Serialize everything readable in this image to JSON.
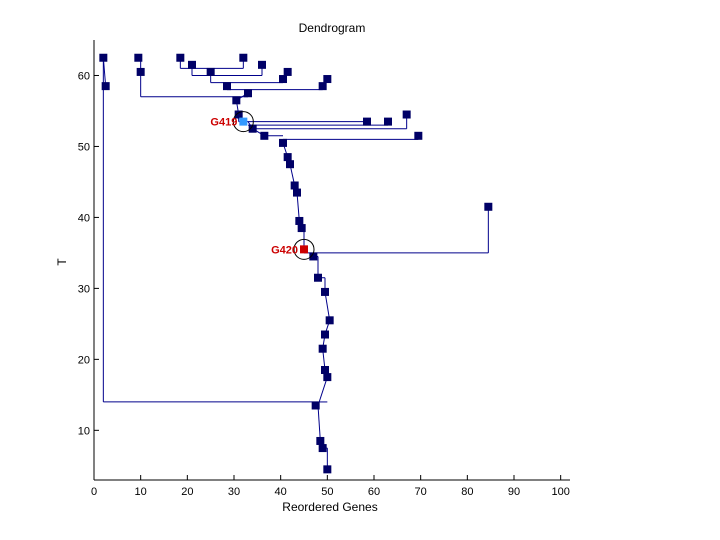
{
  "chart_data": {
    "type": "scatter",
    "title": "Dendrogram",
    "xlabel": "Reordered Genes",
    "ylabel": "T",
    "xlim": [
      0,
      102
    ],
    "ylim": [
      3,
      65
    ],
    "xticks": [
      0,
      10,
      20,
      30,
      40,
      50,
      60,
      70,
      80,
      90,
      100
    ],
    "yticks": [
      10,
      20,
      30,
      40,
      50,
      60
    ],
    "grid": false,
    "colors": {
      "marker": "#000066",
      "line": "#00008b",
      "highlight_blue": "#3399ff",
      "highlight_red": "#cc0000",
      "annotation": "#cc0000"
    },
    "points": [
      {
        "x": 2,
        "y": 62.5
      },
      {
        "x": 9.5,
        "y": 62.5
      },
      {
        "x": 18.5,
        "y": 62.5
      },
      {
        "x": 32,
        "y": 62.5
      },
      {
        "x": 21,
        "y": 61.5
      },
      {
        "x": 36,
        "y": 61.5
      },
      {
        "x": 10,
        "y": 60.5
      },
      {
        "x": 25,
        "y": 60.5
      },
      {
        "x": 41.5,
        "y": 60.5
      },
      {
        "x": 40.5,
        "y": 59.5
      },
      {
        "x": 50,
        "y": 59.5
      },
      {
        "x": 2.5,
        "y": 58.5
      },
      {
        "x": 28.5,
        "y": 58.5
      },
      {
        "x": 49,
        "y": 58.5
      },
      {
        "x": 33,
        "y": 57.5
      },
      {
        "x": 30.5,
        "y": 56.5
      },
      {
        "x": 67,
        "y": 54.5
      },
      {
        "x": 31,
        "y": 54.5
      },
      {
        "x": 58.5,
        "y": 53.5
      },
      {
        "x": 63,
        "y": 53.5
      },
      {
        "x": 34,
        "y": 52.5
      },
      {
        "x": 36.5,
        "y": 51.5
      },
      {
        "x": 69.5,
        "y": 51.5
      },
      {
        "x": 40.5,
        "y": 50.5
      },
      {
        "x": 41.5,
        "y": 48.5
      },
      {
        "x": 42,
        "y": 47.5
      },
      {
        "x": 43,
        "y": 44.5
      },
      {
        "x": 43.5,
        "y": 43.5
      },
      {
        "x": 84.5,
        "y": 41.5
      },
      {
        "x": 44,
        "y": 39.5
      },
      {
        "x": 44.5,
        "y": 38.5
      },
      {
        "x": 47,
        "y": 34.5
      },
      {
        "x": 48,
        "y": 31.5
      },
      {
        "x": 49.5,
        "y": 29.5
      },
      {
        "x": 50.5,
        "y": 25.5
      },
      {
        "x": 49.5,
        "y": 23.5
      },
      {
        "x": 49,
        "y": 21.5
      },
      {
        "x": 49.5,
        "y": 18.5
      },
      {
        "x": 50,
        "y": 17.5
      },
      {
        "x": 47.5,
        "y": 13.5
      },
      {
        "x": 48.5,
        "y": 8.5
      },
      {
        "x": 49,
        "y": 7.5
      },
      {
        "x": 50,
        "y": 4.5
      }
    ],
    "highlights": [
      {
        "label": "G419",
        "x": 32,
        "y": 53.5,
        "color": "blue"
      },
      {
        "label": "G420",
        "x": 45,
        "y": 35.5,
        "color": "red"
      }
    ],
    "segments": [
      [
        [
          50,
          4.5
        ],
        [
          50,
          7.5
        ]
      ],
      [
        [
          49,
          7.5
        ],
        [
          50,
          7.5
        ]
      ],
      [
        [
          49,
          7.5
        ],
        [
          49,
          8.5
        ]
      ],
      [
        [
          48.5,
          8.5
        ],
        [
          49,
          8.5
        ]
      ],
      [
        [
          48.5,
          8.5
        ],
        [
          48,
          13.5
        ]
      ],
      [
        [
          47.5,
          13.5
        ],
        [
          48,
          13.5
        ]
      ],
      [
        [
          48,
          14
        ],
        [
          50,
          14
        ]
      ],
      [
        [
          2,
          14
        ],
        [
          48,
          14
        ]
      ],
      [
        [
          2,
          14
        ],
        [
          2,
          62.5
        ]
      ],
      [
        [
          48,
          13.5
        ],
        [
          50,
          17.5
        ]
      ],
      [
        [
          50,
          17.5
        ],
        [
          49.5,
          18.5
        ]
      ],
      [
        [
          49.5,
          18.5
        ],
        [
          49,
          21.5
        ]
      ],
      [
        [
          49,
          21.5
        ],
        [
          49.5,
          23.5
        ]
      ],
      [
        [
          49.5,
          23.5
        ],
        [
          50.5,
          25.5
        ]
      ],
      [
        [
          50.5,
          25.5
        ],
        [
          49.5,
          29.5
        ]
      ],
      [
        [
          48,
          31.5
        ],
        [
          49.5,
          31.5
        ]
      ],
      [
        [
          49.5,
          29.5
        ],
        [
          49.5,
          31.5
        ]
      ],
      [
        [
          48,
          31.5
        ],
        [
          48,
          34.5
        ]
      ],
      [
        [
          47,
          34.5
        ],
        [
          48,
          34.5
        ]
      ],
      [
        [
          47,
          34.5
        ],
        [
          47,
          35
        ]
      ],
      [
        [
          45,
          35
        ],
        [
          84.5,
          35
        ]
      ],
      [
        [
          84.5,
          35
        ],
        [
          84.5,
          41.5
        ]
      ],
      [
        [
          45,
          35
        ],
        [
          45,
          38.5
        ]
      ],
      [
        [
          44.5,
          38.5
        ],
        [
          45,
          38.5
        ]
      ],
      [
        [
          44.5,
          38.5
        ],
        [
          44,
          39.5
        ]
      ],
      [
        [
          44,
          39.5
        ],
        [
          43.5,
          43.5
        ]
      ],
      [
        [
          43.5,
          43.5
        ],
        [
          43,
          44.5
        ]
      ],
      [
        [
          43,
          44.5
        ],
        [
          42,
          47.5
        ]
      ],
      [
        [
          42,
          47.5
        ],
        [
          41.5,
          48.5
        ]
      ],
      [
        [
          41.5,
          48.5
        ],
        [
          40.5,
          50.5
        ]
      ],
      [
        [
          40.5,
          51
        ],
        [
          69.5,
          51
        ]
      ],
      [
        [
          69.5,
          51
        ],
        [
          69.5,
          51.5
        ]
      ],
      [
        [
          40.5,
          50.5
        ],
        [
          40.5,
          51
        ]
      ],
      [
        [
          36.5,
          51.5
        ],
        [
          40.5,
          51.5
        ]
      ],
      [
        [
          36.5,
          51.5
        ],
        [
          34,
          52.5
        ]
      ],
      [
        [
          34,
          52.5
        ],
        [
          67,
          52.5
        ]
      ],
      [
        [
          67,
          52.5
        ],
        [
          67,
          54.5
        ]
      ],
      [
        [
          34,
          52.5
        ],
        [
          33,
          53.5
        ]
      ],
      [
        [
          33,
          53
        ],
        [
          63,
          53
        ]
      ],
      [
        [
          63,
          53
        ],
        [
          63,
          53.5
        ]
      ],
      [
        [
          31,
          53.5
        ],
        [
          58.5,
          53.5
        ]
      ],
      [
        [
          31,
          53.5
        ],
        [
          31,
          54.5
        ]
      ],
      [
        [
          31,
          54.5
        ],
        [
          30.5,
          56.5
        ]
      ],
      [
        [
          30.5,
          56.5
        ],
        [
          33,
          57.5
        ]
      ],
      [
        [
          10,
          57
        ],
        [
          33,
          57
        ]
      ],
      [
        [
          10,
          57
        ],
        [
          10,
          62.5
        ]
      ],
      [
        [
          9.5,
          62.5
        ],
        [
          10,
          62.5
        ]
      ],
      [
        [
          28.5,
          58
        ],
        [
          49,
          58
        ]
      ],
      [
        [
          28.5,
          58
        ],
        [
          28.5,
          58.5
        ]
      ],
      [
        [
          49,
          58
        ],
        [
          50,
          59.5
        ]
      ],
      [
        [
          25,
          59
        ],
        [
          40.5,
          59
        ]
      ],
      [
        [
          25,
          59
        ],
        [
          25,
          60.5
        ]
      ],
      [
        [
          40.5,
          59
        ],
        [
          41.5,
          60.5
        ]
      ],
      [
        [
          21,
          60
        ],
        [
          36,
          60
        ]
      ],
      [
        [
          21,
          60
        ],
        [
          21,
          61.5
        ]
      ],
      [
        [
          36,
          60
        ],
        [
          36,
          61.5
        ]
      ],
      [
        [
          18.5,
          61
        ],
        [
          32,
          61
        ]
      ],
      [
        [
          18.5,
          61
        ],
        [
          18.5,
          62.5
        ]
      ],
      [
        [
          32,
          61
        ],
        [
          32,
          62.5
        ]
      ],
      [
        [
          2,
          62.5
        ],
        [
          2.5,
          58.5
        ]
      ]
    ]
  }
}
